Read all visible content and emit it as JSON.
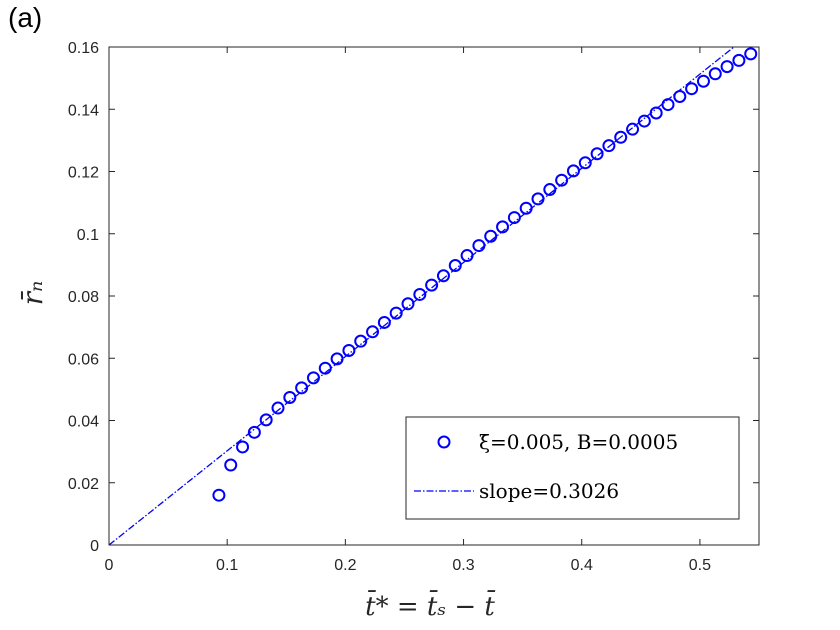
{
  "panel_label": "(a)",
  "chart_data": {
    "type": "scatter",
    "title": "",
    "xlabel": "t̄* = t̄ₛ − t̄",
    "ylabel": "r̄ₙ",
    "xlim": [
      0,
      0.55
    ],
    "ylim": [
      0,
      0.16
    ],
    "xticks": [
      0,
      0.1,
      0.2,
      0.3,
      0.4,
      0.5
    ],
    "xtick_labels": [
      "0",
      "0.1",
      "0.2",
      "0.3",
      "0.4",
      "0.5"
    ],
    "yticks": [
      0,
      0.02,
      0.04,
      0.06,
      0.08,
      0.1,
      0.12,
      0.14,
      0.16
    ],
    "ytick_labels": [
      "0",
      "0.02",
      "0.04",
      "0.06",
      "0.08",
      "0.1",
      "0.12",
      "0.14",
      "0.16"
    ],
    "grid": false,
    "legend_position": "bottom-right",
    "series": [
      {
        "name": "ξ̄=0.005, B=0.0005",
        "kind": "markers",
        "marker": "circle",
        "color": "#0000ff",
        "x": [
          0.093,
          0.103,
          0.113,
          0.123,
          0.133,
          0.143,
          0.153,
          0.163,
          0.173,
          0.183,
          0.193,
          0.203,
          0.213,
          0.223,
          0.233,
          0.243,
          0.253,
          0.263,
          0.273,
          0.283,
          0.293,
          0.303,
          0.313,
          0.323,
          0.333,
          0.343,
          0.353,
          0.363,
          0.373,
          0.383,
          0.393,
          0.403,
          0.413,
          0.423,
          0.433,
          0.443,
          0.453,
          0.463,
          0.473,
          0.483,
          0.493,
          0.503,
          0.513,
          0.523,
          0.533,
          0.543
        ],
        "y": [
          0.016,
          0.0257,
          0.0315,
          0.0362,
          0.0402,
          0.044,
          0.0474,
          0.0505,
          0.0537,
          0.0568,
          0.0598,
          0.0625,
          0.0655,
          0.0685,
          0.0715,
          0.0745,
          0.0775,
          0.0805,
          0.0835,
          0.0865,
          0.0898,
          0.093,
          0.0962,
          0.0992,
          0.1022,
          0.1052,
          0.1082,
          0.1112,
          0.1142,
          0.1172,
          0.1202,
          0.1228,
          0.1257,
          0.1283,
          0.131,
          0.1336,
          0.1362,
          0.1388,
          0.1415,
          0.1441,
          0.1466,
          0.149,
          0.1514,
          0.1537,
          0.1557,
          0.1578
        ]
      },
      {
        "name": "slope=0.3026",
        "kind": "line",
        "style": "dash-dot",
        "color": "#0000ff",
        "slope": 0.3026,
        "x": [
          0,
          0.529
        ],
        "y": [
          0,
          0.16
        ]
      }
    ]
  }
}
